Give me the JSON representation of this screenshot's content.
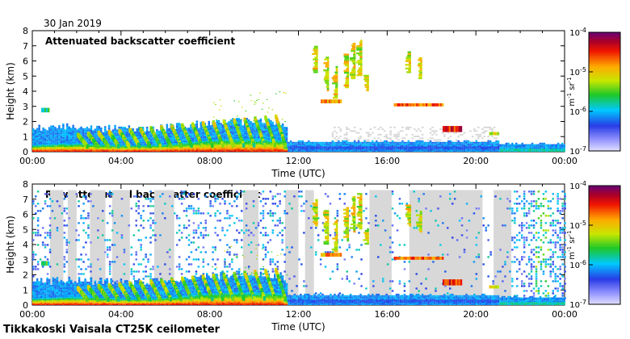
{
  "date": "30 Jan 2019",
  "footer": "Tikkakoski Vaisala CT25K ceilometer",
  "chart_data": [
    {
      "type": "heatmap",
      "title": "Attenuated backscatter coefficient",
      "xlabel": "Time (UTC)",
      "ylabel": "Height (km)",
      "xlim": [
        0,
        24
      ],
      "ylim": [
        0,
        8
      ],
      "xticks": [
        "00:00",
        "04:00",
        "08:00",
        "12:00",
        "16:00",
        "20:00",
        "00:00"
      ],
      "yticks": [
        "0",
        "1",
        "2",
        "3",
        "4",
        "5",
        "6",
        "7",
        "8"
      ],
      "colorbar": {
        "scale": "log",
        "range": [
          1e-07,
          0.0001
        ],
        "ticks": [
          "10-4",
          "10-5",
          "10-6",
          "10-7"
        ],
        "unit": "m-1 sr-1"
      },
      "features": [
        {
          "name": "aerosol boundary layer",
          "start": 0,
          "end": 11.5,
          "top_km": [
            0.5,
            1.5
          ],
          "level": "high"
        },
        {
          "name": "virga fall streaks",
          "start": 2,
          "end": 11.2,
          "top_km": [
            0.5,
            2.3
          ],
          "level": "moderate"
        },
        {
          "name": "low cloud",
          "start": 0.4,
          "end": 0.7,
          "base_km": 2.6,
          "top_km": 2.9,
          "level": "moderate"
        },
        {
          "name": "mid-level cloud",
          "start": 13,
          "end": 13.9,
          "base_km": 3.2,
          "top_km": 3.5,
          "level": "high"
        },
        {
          "name": "mid-level cloud",
          "start": 16.3,
          "end": 18.5,
          "base_km": 3.0,
          "top_km": 3.2,
          "level": "high"
        },
        {
          "name": "cloud",
          "start": 18.5,
          "end": 19.3,
          "base_km": 1.3,
          "top_km": 1.7,
          "level": "high"
        },
        {
          "name": "high ice cloud",
          "start": 12.6,
          "end": 15.1,
          "base_km": 3.5,
          "top_km": 7.3,
          "level": "moderate"
        }
      ]
    },
    {
      "type": "heatmap",
      "title": "Raw attenuated backscatter coefficient",
      "xlabel": "Time (UTC)",
      "ylabel": "Height (km)",
      "xlim": [
        0,
        24
      ],
      "ylim": [
        0,
        8
      ],
      "xticks": [
        "00:00",
        "04:00",
        "08:00",
        "12:00",
        "16:00",
        "20:00",
        "00:00"
      ],
      "yticks": [
        "0",
        "1",
        "2",
        "3",
        "4",
        "5",
        "6",
        "7",
        "8"
      ],
      "colorbar": {
        "scale": "log",
        "range": [
          1e-07,
          0.0001
        ],
        "ticks": [
          "10-4",
          "10-5",
          "10-6",
          "10-7"
        ],
        "unit": "m-1 sr-1"
      },
      "features": [
        {
          "name": "noise",
          "start": 0,
          "end": 24,
          "top_km": [
            7.6,
            7.6
          ],
          "level": "noise"
        }
      ]
    }
  ],
  "colors": {
    "low": "#3b3bd6",
    "mid": "#28c828",
    "high": "#ff5a00",
    "peak": "#7a0078",
    "masked": "#d8d8d8"
  }
}
